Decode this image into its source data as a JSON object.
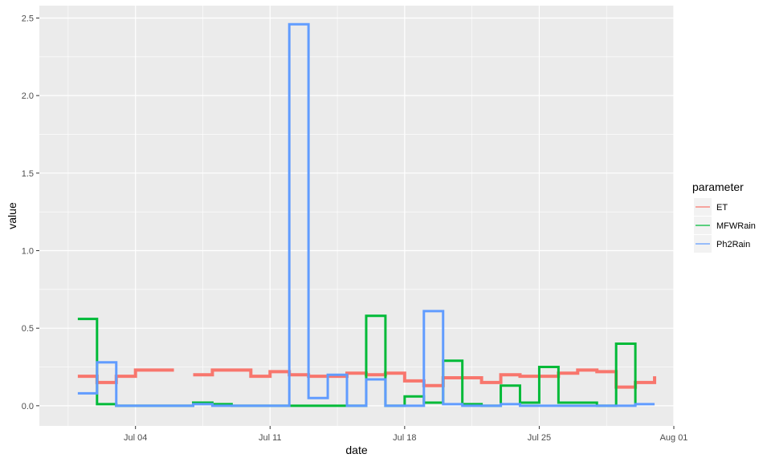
{
  "chart_data": {
    "type": "line",
    "step": true,
    "xlabel": "date",
    "ylabel": "value",
    "x_range": [
      "2021-06-29",
      "2021-08-01"
    ],
    "ylim": [
      -0.13,
      2.58
    ],
    "x_ticks": [
      {
        "date": "2021-07-04",
        "label": "Jul 04"
      },
      {
        "date": "2021-07-11",
        "label": "Jul 11"
      },
      {
        "date": "2021-07-18",
        "label": "Jul 18"
      },
      {
        "date": "2021-07-25",
        "label": "Jul 25"
      },
      {
        "date": "2021-08-01",
        "label": "Aug 01"
      }
    ],
    "y_ticks": [
      {
        "value": 0.0,
        "label": "0.0"
      },
      {
        "value": 0.5,
        "label": "0.5"
      },
      {
        "value": 1.0,
        "label": "1.0"
      },
      {
        "value": 1.5,
        "label": "1.5"
      },
      {
        "value": 2.0,
        "label": "2.0"
      },
      {
        "value": 2.5,
        "label": "2.5"
      }
    ],
    "grid": true,
    "background": "#ebebeb",
    "legend": {
      "title": "parameter",
      "position": "right"
    },
    "series": [
      {
        "name": "ET",
        "color": "#F8766D",
        "segments": [
          [
            [
              "2021-07-01",
              0.19
            ],
            [
              "2021-07-02",
              0.19
            ],
            [
              "2021-07-02",
              0.15
            ],
            [
              "2021-07-03",
              0.15
            ],
            [
              "2021-07-03",
              0.19
            ],
            [
              "2021-07-04",
              0.19
            ],
            [
              "2021-07-04",
              0.23
            ],
            [
              "2021-07-06",
              0.23
            ]
          ],
          [
            [
              "2021-07-07",
              0.2
            ],
            [
              "2021-07-08",
              0.2
            ],
            [
              "2021-07-08",
              0.23
            ],
            [
              "2021-07-10",
              0.23
            ],
            [
              "2021-07-10",
              0.19
            ],
            [
              "2021-07-11",
              0.19
            ],
            [
              "2021-07-11",
              0.22
            ],
            [
              "2021-07-12",
              0.22
            ],
            [
              "2021-07-12",
              0.2
            ],
            [
              "2021-07-13",
              0.2
            ],
            [
              "2021-07-13",
              0.19
            ],
            [
              "2021-07-15",
              0.19
            ],
            [
              "2021-07-15",
              0.21
            ],
            [
              "2021-07-16",
              0.21
            ],
            [
              "2021-07-16",
              0.2
            ],
            [
              "2021-07-17",
              0.2
            ],
            [
              "2021-07-17",
              0.21
            ],
            [
              "2021-07-18",
              0.21
            ],
            [
              "2021-07-18",
              0.16
            ],
            [
              "2021-07-19",
              0.16
            ],
            [
              "2021-07-19",
              0.13
            ],
            [
              "2021-07-20",
              0.13
            ],
            [
              "2021-07-20",
              0.18
            ],
            [
              "2021-07-22",
              0.18
            ],
            [
              "2021-07-22",
              0.15
            ],
            [
              "2021-07-23",
              0.15
            ],
            [
              "2021-07-23",
              0.2
            ],
            [
              "2021-07-24",
              0.2
            ],
            [
              "2021-07-24",
              0.19
            ],
            [
              "2021-07-26",
              0.19
            ],
            [
              "2021-07-26",
              0.21
            ],
            [
              "2021-07-27",
              0.21
            ],
            [
              "2021-07-27",
              0.23
            ],
            [
              "2021-07-28",
              0.23
            ],
            [
              "2021-07-28",
              0.22
            ],
            [
              "2021-07-29",
              0.22
            ],
            [
              "2021-07-29",
              0.12
            ],
            [
              "2021-07-30",
              0.12
            ],
            [
              "2021-07-30",
              0.15
            ],
            [
              "2021-07-31",
              0.15
            ],
            [
              "2021-07-31",
              0.19
            ]
          ]
        ]
      },
      {
        "name": "MFWRain",
        "color": "#00BA38",
        "segments": [
          [
            [
              "2021-07-01",
              0.56
            ],
            [
              "2021-07-02",
              0.56
            ],
            [
              "2021-07-02",
              0.01
            ],
            [
              "2021-07-03",
              0.01
            ],
            [
              "2021-07-03",
              0.0
            ],
            [
              "2021-07-07",
              0.0
            ],
            [
              "2021-07-07",
              0.02
            ],
            [
              "2021-07-08",
              0.02
            ],
            [
              "2021-07-08",
              0.01
            ],
            [
              "2021-07-09",
              0.01
            ],
            [
              "2021-07-09",
              0.0
            ],
            [
              "2021-07-16",
              0.0
            ],
            [
              "2021-07-16",
              0.58
            ],
            [
              "2021-07-17",
              0.58
            ],
            [
              "2021-07-17",
              0.0
            ],
            [
              "2021-07-18",
              0.0
            ],
            [
              "2021-07-18",
              0.06
            ],
            [
              "2021-07-19",
              0.06
            ],
            [
              "2021-07-19",
              0.02
            ],
            [
              "2021-07-20",
              0.02
            ],
            [
              "2021-07-20",
              0.29
            ],
            [
              "2021-07-21",
              0.29
            ],
            [
              "2021-07-21",
              0.01
            ],
            [
              "2021-07-22",
              0.01
            ],
            [
              "2021-07-22",
              0.0
            ],
            [
              "2021-07-23",
              0.0
            ],
            [
              "2021-07-23",
              0.13
            ],
            [
              "2021-07-24",
              0.13
            ],
            [
              "2021-07-24",
              0.02
            ],
            [
              "2021-07-25",
              0.02
            ],
            [
              "2021-07-25",
              0.25
            ],
            [
              "2021-07-26",
              0.25
            ],
            [
              "2021-07-26",
              0.02
            ],
            [
              "2021-07-28",
              0.02
            ],
            [
              "2021-07-28",
              0.0
            ],
            [
              "2021-07-29",
              0.0
            ],
            [
              "2021-07-29",
              0.4
            ],
            [
              "2021-07-30",
              0.4
            ],
            [
              "2021-07-30",
              0.0
            ]
          ]
        ]
      },
      {
        "name": "Ph2Rain",
        "color": "#619CFF",
        "segments": [
          [
            [
              "2021-07-01",
              0.08
            ],
            [
              "2021-07-02",
              0.08
            ],
            [
              "2021-07-02",
              0.28
            ],
            [
              "2021-07-03",
              0.28
            ],
            [
              "2021-07-03",
              0.0
            ],
            [
              "2021-07-07",
              0.0
            ],
            [
              "2021-07-07",
              0.01
            ],
            [
              "2021-07-08",
              0.01
            ],
            [
              "2021-07-08",
              0.0
            ],
            [
              "2021-07-12",
              0.0
            ],
            [
              "2021-07-12",
              2.46
            ],
            [
              "2021-07-13",
              2.46
            ],
            [
              "2021-07-13",
              0.05
            ],
            [
              "2021-07-14",
              0.05
            ],
            [
              "2021-07-14",
              0.2
            ],
            [
              "2021-07-15",
              0.2
            ],
            [
              "2021-07-15",
              0.0
            ],
            [
              "2021-07-16",
              0.0
            ],
            [
              "2021-07-16",
              0.17
            ],
            [
              "2021-07-17",
              0.17
            ],
            [
              "2021-07-17",
              0.0
            ],
            [
              "2021-07-19",
              0.0
            ],
            [
              "2021-07-19",
              0.61
            ],
            [
              "2021-07-20",
              0.61
            ],
            [
              "2021-07-20",
              0.01
            ],
            [
              "2021-07-21",
              0.01
            ],
            [
              "2021-07-21",
              0.0
            ],
            [
              "2021-07-23",
              0.0
            ],
            [
              "2021-07-23",
              0.01
            ],
            [
              "2021-07-24",
              0.01
            ],
            [
              "2021-07-24",
              0.0
            ],
            [
              "2021-07-30",
              0.0
            ],
            [
              "2021-07-30",
              0.01
            ],
            [
              "2021-07-31",
              0.01
            ]
          ]
        ]
      }
    ]
  }
}
